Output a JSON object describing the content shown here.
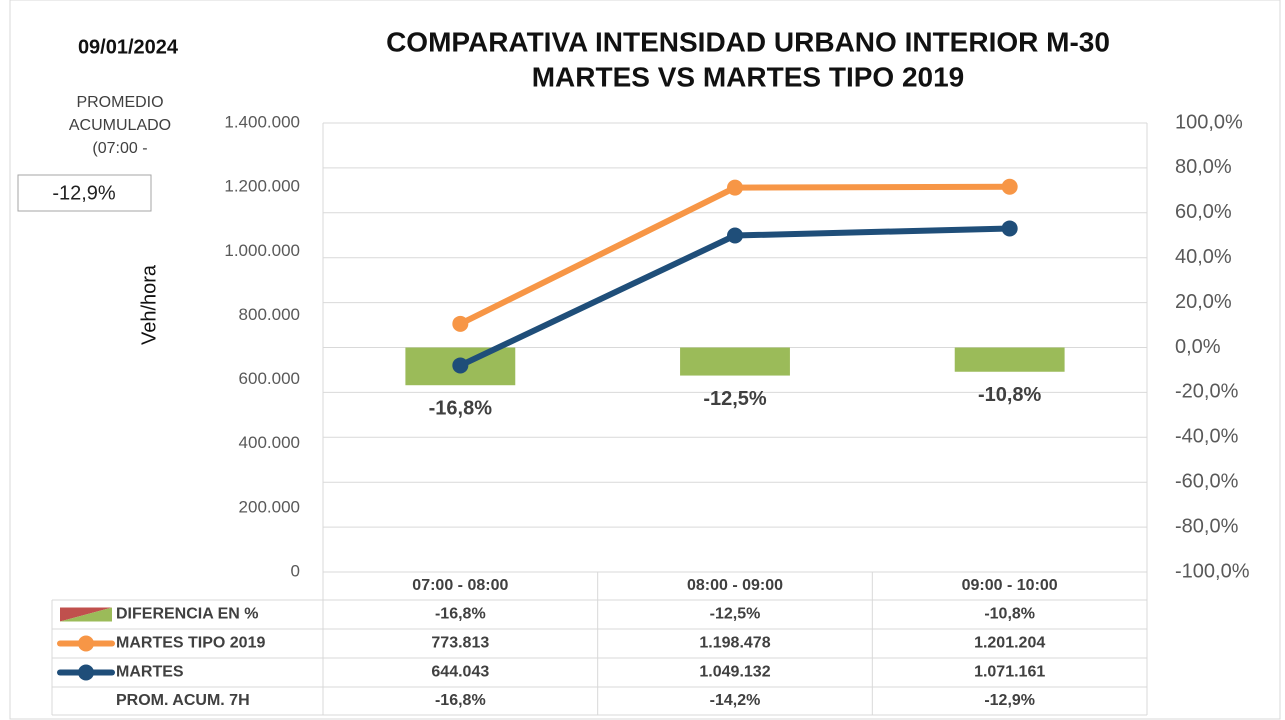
{
  "date": "09/01/2024",
  "summary": {
    "label_lines": [
      "PROMEDIO",
      "ACUMULADO",
      "(07:00 -"
    ],
    "value": -12.9,
    "value_label": "-12,9%"
  },
  "chart_data": {
    "type": "combo",
    "title": "COMPARATIVA INTENSIDAD URBANO INTERIOR M-30",
    "subtitle": "MARTES VS MARTES TIPO 2019",
    "ylabel": "Veh/hora",
    "categories": [
      "07:00 - 08:00",
      "08:00 - 09:00",
      "09:00 - 10:00"
    ],
    "ylim": [
      0,
      1400000
    ],
    "yticks": [
      0,
      {
        "value": 200000,
        "label": "200.000"
      },
      {
        "value": 400000,
        "label": "400.000"
      },
      {
        "value": 600000,
        "label": "600.000"
      },
      {
        "value": 800000,
        "label": "800.000"
      },
      {
        "value": 1000000,
        "label": "1.000.000"
      },
      {
        "value": 1200000,
        "label": "1.200.000"
      },
      {
        "value": 1400000,
        "label": "1.400.000"
      }
    ],
    "y2lim": [
      -100,
      100
    ],
    "y2ticks": [
      {
        "value": -100,
        "label": "-100,0%"
      },
      {
        "value": -80,
        "label": "-80,0%"
      },
      {
        "value": -60,
        "label": "-60,0%"
      },
      {
        "value": -40,
        "label": "-40,0%"
      },
      {
        "value": -20,
        "label": "-20,0%"
      },
      {
        "value": 0,
        "label": "0,0%"
      },
      {
        "value": 20,
        "label": "20,0%"
      },
      {
        "value": 40,
        "label": "40,0%"
      },
      {
        "value": 60,
        "label": "60,0%"
      },
      {
        "value": 80,
        "label": "80,0%"
      },
      {
        "value": 100,
        "label": "100,0%"
      }
    ],
    "grid": true,
    "series": [
      {
        "name": "DIFERENCIA EN %",
        "type": "bar",
        "axis": "y2",
        "color": "#9bbb59",
        "values": [
          -16.8,
          -12.5,
          -10.8
        ],
        "value_labels": [
          "-16,8%",
          "-12,5%",
          "-10,8%"
        ]
      },
      {
        "name": "MARTES TIPO 2019",
        "type": "line",
        "color": "#f79646",
        "values": [
          773813,
          1198478,
          1201204
        ],
        "value_labels": [
          "773.813",
          "1.198.478",
          "1.201.204"
        ]
      },
      {
        "name": "MARTES",
        "type": "line",
        "color": "#1f4e79",
        "values": [
          644043,
          1049132,
          1071161
        ],
        "value_labels": [
          "644.043",
          "1.049.132",
          "1.071.161"
        ]
      }
    ],
    "table_rows": [
      {
        "name": "PROM. ACUM. 7H",
        "values": [
          -16.8,
          -14.2,
          -12.9
        ],
        "value_labels": [
          "-16,8%",
          "-14,2%",
          "-12,9%"
        ]
      }
    ]
  }
}
